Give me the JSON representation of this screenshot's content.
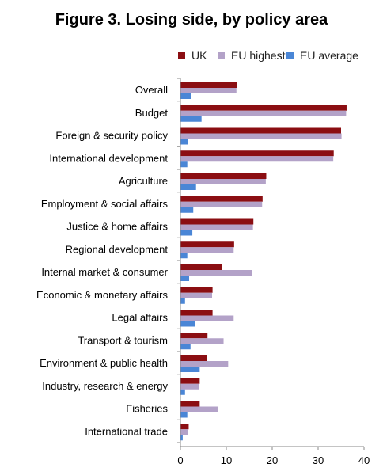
{
  "chart_data": {
    "type": "bar",
    "orientation": "horizontal",
    "title": "Figure 3. Losing side, by policy area",
    "categories": [
      "Overall",
      "Budget",
      "Foreign & security policy",
      "International development",
      "Agriculture",
      "Employment & social affairs",
      "Justice & home affairs",
      "Regional development",
      "Internal market & consumer",
      "Economic & monetary affairs",
      "Legal affairs",
      "Transport & tourism",
      "Environment & public health",
      "Industry, research & energy",
      "Fisheries",
      "International trade"
    ],
    "series": [
      {
        "name": "UK",
        "color": "#8B0E12",
        "values": [
          12.3,
          36.2,
          35.0,
          33.4,
          18.7,
          17.9,
          15.9,
          11.7,
          9.1,
          7.0,
          7.0,
          5.9,
          5.8,
          4.2,
          4.2,
          1.8
        ]
      },
      {
        "name": "EU highest",
        "color": "#B3A2C8",
        "values": [
          12.2,
          36.1,
          35.1,
          33.3,
          18.6,
          17.8,
          15.8,
          11.6,
          15.6,
          6.9,
          11.6,
          9.4,
          10.4,
          4.1,
          8.1,
          1.7
        ]
      },
      {
        "name": "EU average",
        "color": "#4A86D6",
        "values": [
          2.3,
          4.6,
          1.6,
          1.5,
          3.4,
          2.8,
          2.6,
          1.5,
          1.9,
          1.0,
          3.2,
          2.2,
          4.2,
          1.0,
          1.5,
          0.5
        ]
      }
    ],
    "xlim": [
      0,
      40
    ],
    "xticks": [
      0,
      10,
      20,
      30,
      40
    ],
    "legend_position": "top",
    "grid": false
  }
}
